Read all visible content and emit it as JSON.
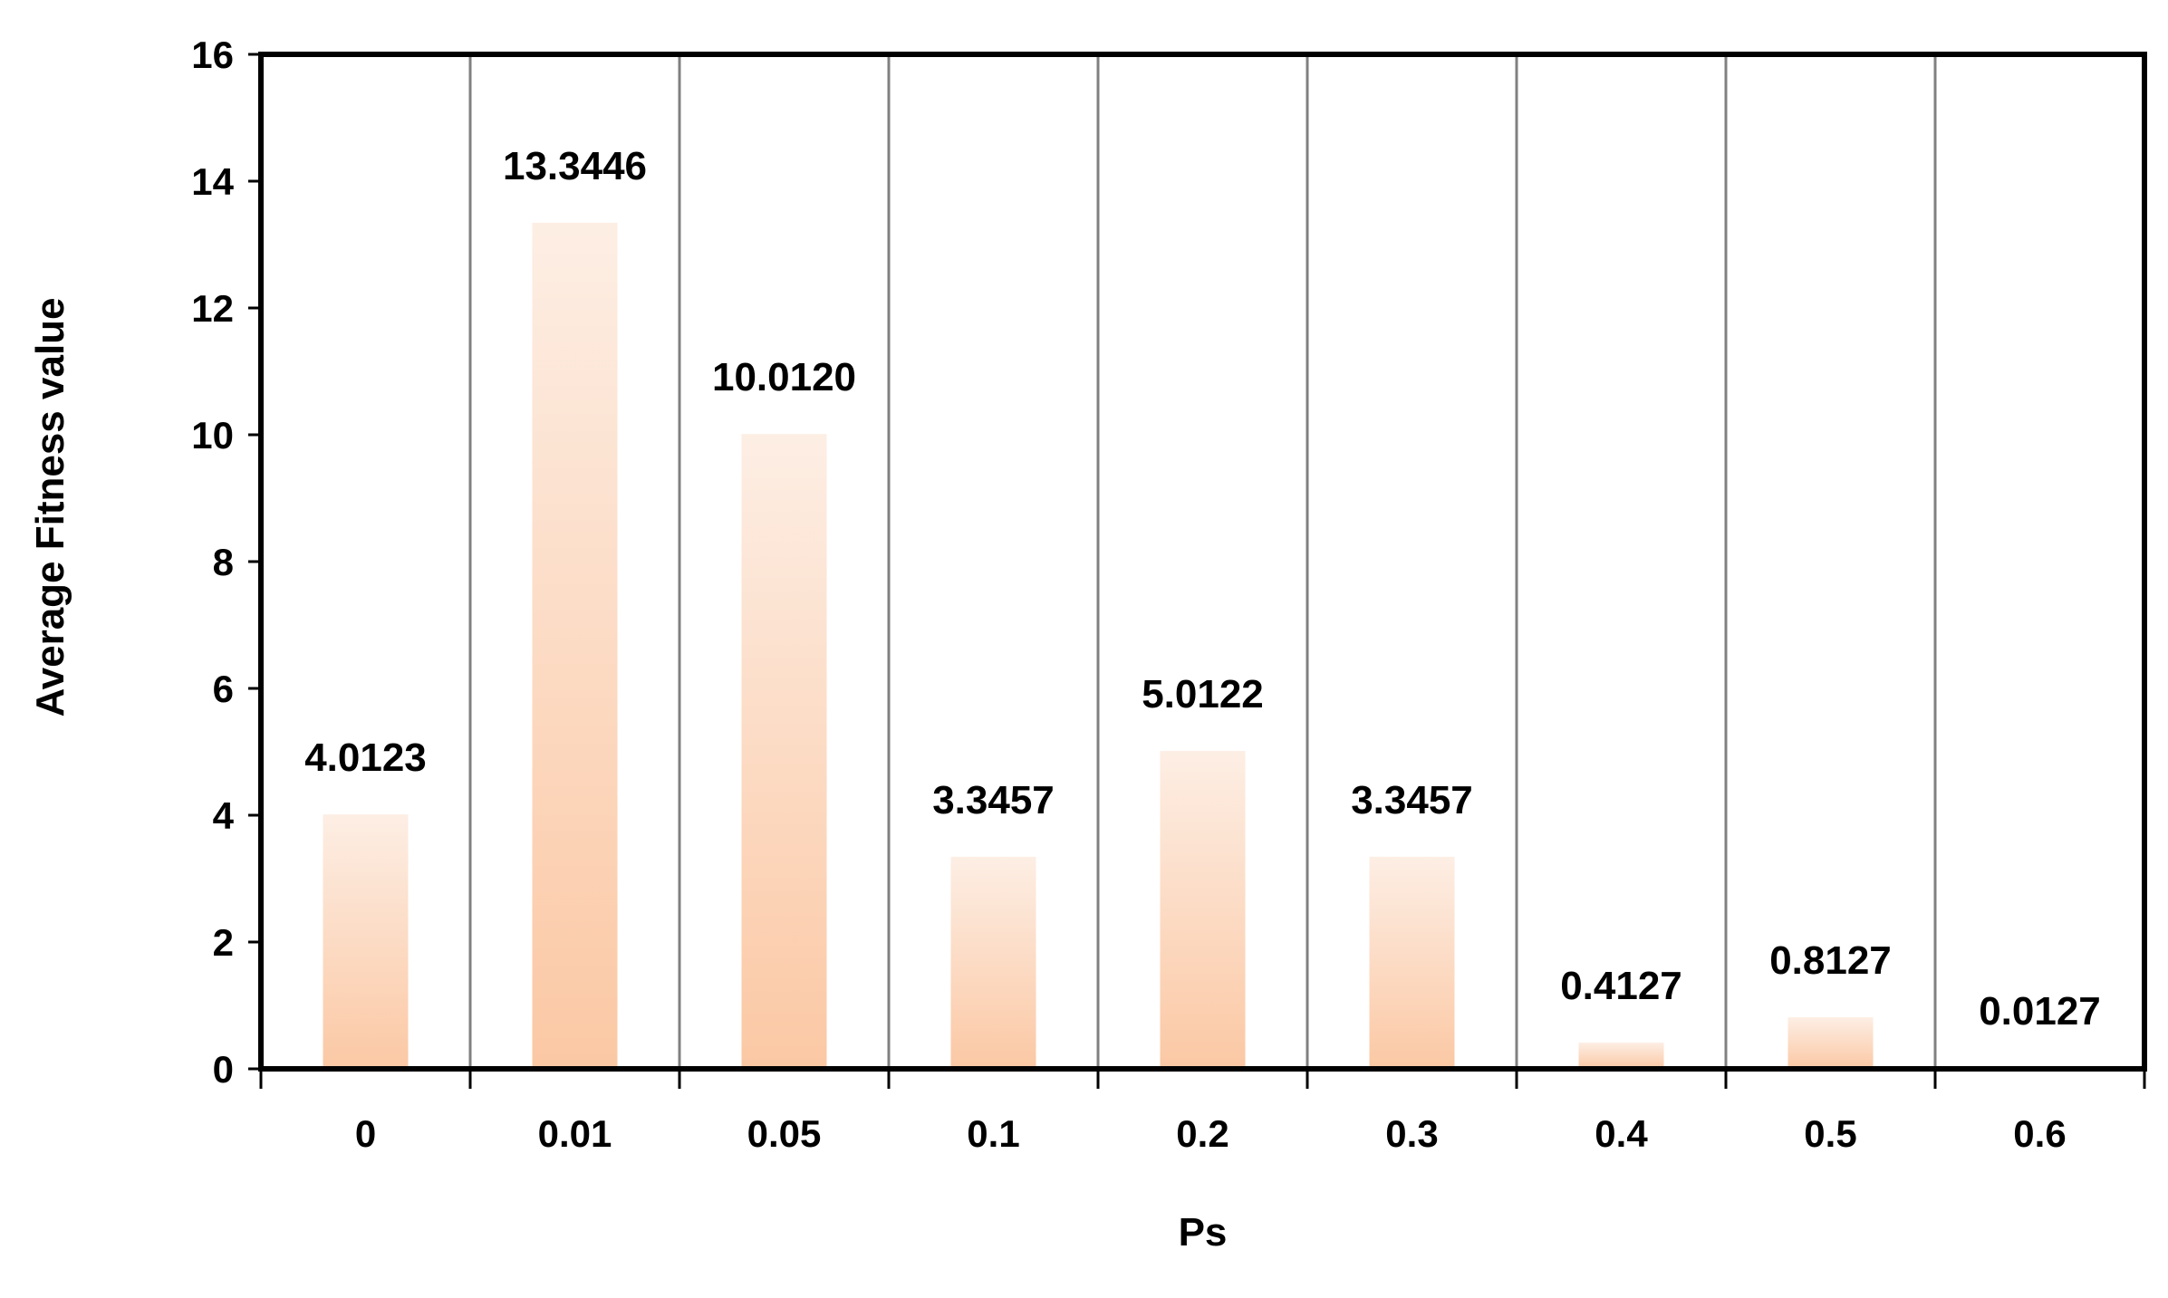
{
  "chart_data": {
    "type": "bar",
    "xlabel": "Ps",
    "ylabel": "Average Fitness value",
    "categories": [
      "0",
      "0.01",
      "0.05",
      "0.1",
      "0.2",
      "0.3",
      "0.4",
      "0.5",
      "0.6"
    ],
    "values": [
      4.0123,
      13.3446,
      10.012,
      3.3457,
      5.0122,
      3.3457,
      0.4127,
      0.8127,
      0.0127
    ],
    "value_labels": [
      "4.0123",
      "13.3446",
      "10.0120",
      "3.3457",
      "5.0122",
      "3.3457",
      "0.4127",
      "0.8127",
      "0.0127"
    ],
    "ylim": [
      0,
      16
    ],
    "yticks": [
      0,
      2,
      4,
      6,
      8,
      10,
      12,
      14,
      16
    ],
    "grid": "vertical gridlines between categories",
    "legend": "none",
    "colors": {
      "bar_top": "#fdeee4",
      "bar_bottom": "#fbc8a4",
      "grid": "#808080",
      "frame": "#000000"
    }
  }
}
